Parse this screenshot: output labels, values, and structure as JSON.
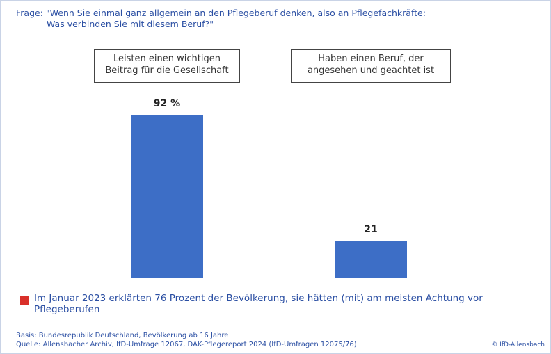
{
  "chart_data": {
    "type": "bar",
    "title": "Frage: \"Wenn Sie einmal ganz allgemein an den Pflegeberuf denken, also an Pflegefachkräfte:",
    "subtitle": "Was verbinden Sie mit diesem Beruf?\"",
    "categories": [
      "Leisten einen wichtigen Beitrag für die Gesellschaft",
      "Haben einen Beruf, der angesehen und geachtet ist"
    ],
    "values": [
      92,
      21
    ],
    "value_labels": [
      "92 %",
      "21"
    ],
    "color": "#3d6ec6",
    "note": "Im Januar 2023 erklärten 76 Prozent der Bevölkerung, sie hätten (mit) am meisten Achtung vor Pflegeberufen",
    "basis": "Basis: Bundesrepublik Deutschland, Bevölkerung ab 16 Jahre",
    "source": "Quelle: Allensbacher Archiv, IfD-Umfrage 12067, DAK-Pflegereport 2024 (IfD-Umfragen 12075/76)",
    "copyright": "© IfD-Allensbach"
  }
}
